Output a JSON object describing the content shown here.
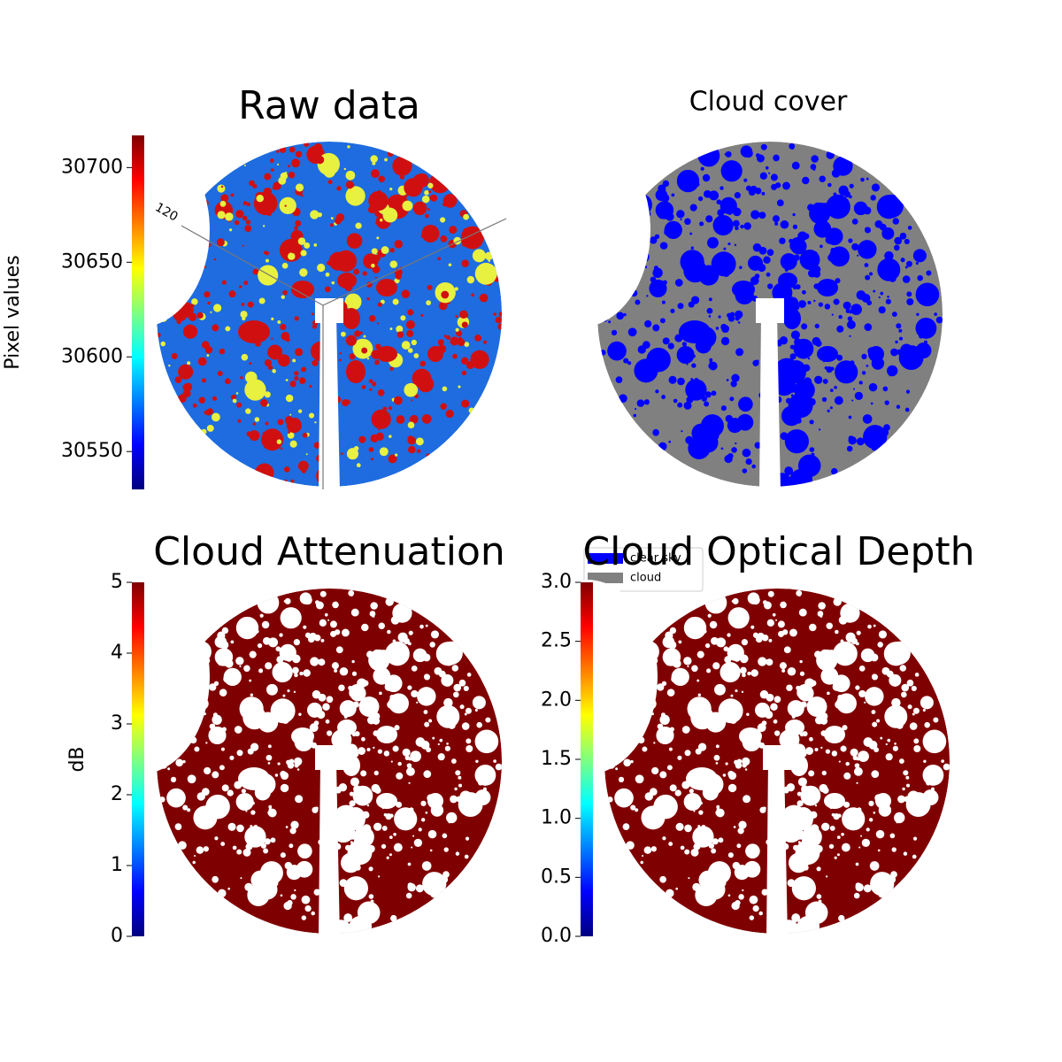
{
  "chart_data": [
    {
      "type": "heatmap",
      "title": "Raw data",
      "colorbar_label": "Pixel values",
      "colormap": "jet",
      "ylim": [
        30530,
        30717
      ],
      "yticks": [
        30550,
        30600,
        30650,
        30700
      ],
      "annotations": [
        "120"
      ]
    },
    {
      "type": "mask",
      "title": "Cloud cover",
      "series": [
        {
          "name": "clear sky",
          "color": "#0000ff"
        },
        {
          "name": "cloud",
          "color": "#808080"
        }
      ]
    },
    {
      "type": "heatmap",
      "title": "Cloud Attenuation",
      "colorbar_label": "dB",
      "colormap": "jet",
      "ylim": [
        0,
        5
      ],
      "yticks": [
        0,
        1,
        2,
        3,
        4,
        5
      ]
    },
    {
      "type": "heatmap",
      "title": "Cloud Optical Depth",
      "colormap": "jet",
      "ylim": [
        0,
        3
      ],
      "yticks": [
        {
          "value": 0,
          "label": "0.0"
        },
        {
          "value": 0.5,
          "label": "0.5"
        },
        {
          "value": 1,
          "label": "1.0"
        },
        {
          "value": 1.5,
          "label": "1.5"
        },
        {
          "value": 2,
          "label": "2.0"
        },
        {
          "value": 2.5,
          "label": "2.5"
        },
        {
          "value": 3,
          "label": "3.0"
        }
      ]
    }
  ]
}
